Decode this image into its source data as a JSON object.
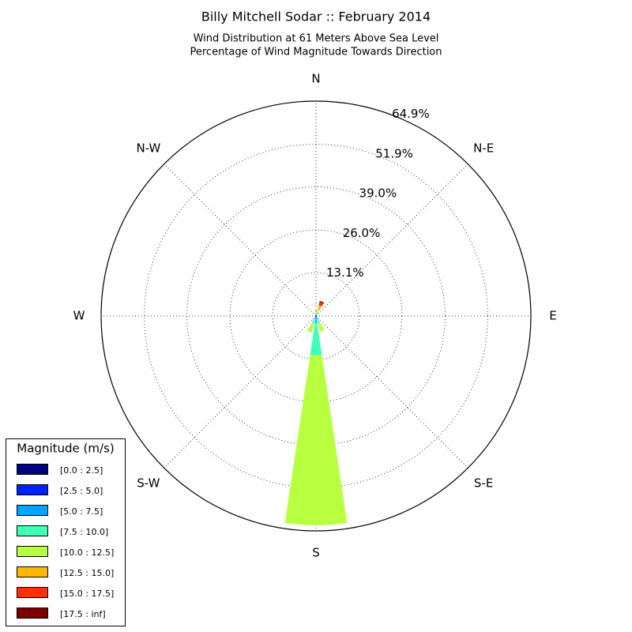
{
  "chart_data": {
    "type": "windrose",
    "title": "Billy Mitchell Sodar :: February 2014",
    "subtitle": [
      "Wind Distribution at 61 Meters Above Sea Level",
      "Percentage of Wind Magnitude Towards Direction"
    ],
    "categories": [
      "N",
      null,
      "N-E",
      null,
      "E",
      null,
      "S-E",
      null,
      "S",
      null,
      "S-W",
      null,
      "W",
      null,
      "N-W",
      null
    ],
    "rlim": [
      0,
      64.9
    ],
    "rticks": [
      {
        "value": 13.1,
        "label": "13.1%"
      },
      {
        "value": 26.0,
        "label": "26.0%"
      },
      {
        "value": 39.0,
        "label": "39.0%"
      },
      {
        "value": 51.9,
        "label": "51.9%"
      },
      {
        "value": 64.9,
        "label": "64.9%"
      }
    ],
    "grid": true,
    "legend_title": "Magnitude (m/s)",
    "legend": "lower left",
    "series": [
      {
        "name": "[0.0 : 2.5]",
        "color": "#000080",
        "values": [
          0.1,
          0.1,
          0.1,
          0.1,
          0.1,
          0.1,
          0.1,
          0.1,
          0.2,
          0.1,
          0.1,
          0.1,
          0.1,
          0.1,
          0.1,
          0.1
        ]
      },
      {
        "name": "[2.5 : 5.0]",
        "color": "#0020ff",
        "values": [
          0.2,
          0.2,
          0.1,
          0.1,
          0.1,
          0.1,
          0.1,
          0.3,
          0.5,
          0.3,
          0.1,
          0.1,
          0.1,
          0.1,
          0.1,
          0.1
        ]
      },
      {
        "name": "[5.0 : 7.5]",
        "color": "#00a4ff",
        "values": [
          0.3,
          0.3,
          0.2,
          0.1,
          0.1,
          0.1,
          0.2,
          0.5,
          1.5,
          0.5,
          0.2,
          0.1,
          0.1,
          0.1,
          0.1,
          0.2
        ]
      },
      {
        "name": "[7.5 : 10.0]",
        "color": "#40ffb8",
        "values": [
          0.3,
          0.5,
          0.2,
          0.1,
          0,
          0,
          0.2,
          1.5,
          9.7,
          1.5,
          0.2,
          0,
          0,
          0,
          0,
          0.2
        ]
      },
      {
        "name": "[10.0 : 12.5]",
        "color": "#b8ff40",
        "values": [
          0.2,
          0.8,
          0,
          0,
          0,
          0,
          0,
          2.5,
          51.3,
          2.8,
          0,
          0,
          0,
          0,
          0,
          0
        ]
      },
      {
        "name": "[12.5 : 15.0]",
        "color": "#ffb800",
        "values": [
          0.3,
          1.5,
          0,
          0,
          0,
          0,
          0,
          0,
          0,
          0,
          0,
          0,
          0,
          0,
          0,
          0
        ]
      },
      {
        "name": "[15.0 : 17.5]",
        "color": "#ff3000",
        "values": [
          0.2,
          1.0,
          0,
          0,
          0,
          0,
          0,
          0,
          0,
          0,
          0,
          0,
          0,
          0,
          0,
          0
        ]
      },
      {
        "name": "[17.5 : inf]",
        "color": "#800000",
        "values": [
          0,
          0.3,
          0,
          0,
          0,
          0,
          0,
          0,
          0,
          0,
          0,
          0,
          0,
          0,
          0,
          0
        ]
      }
    ]
  }
}
